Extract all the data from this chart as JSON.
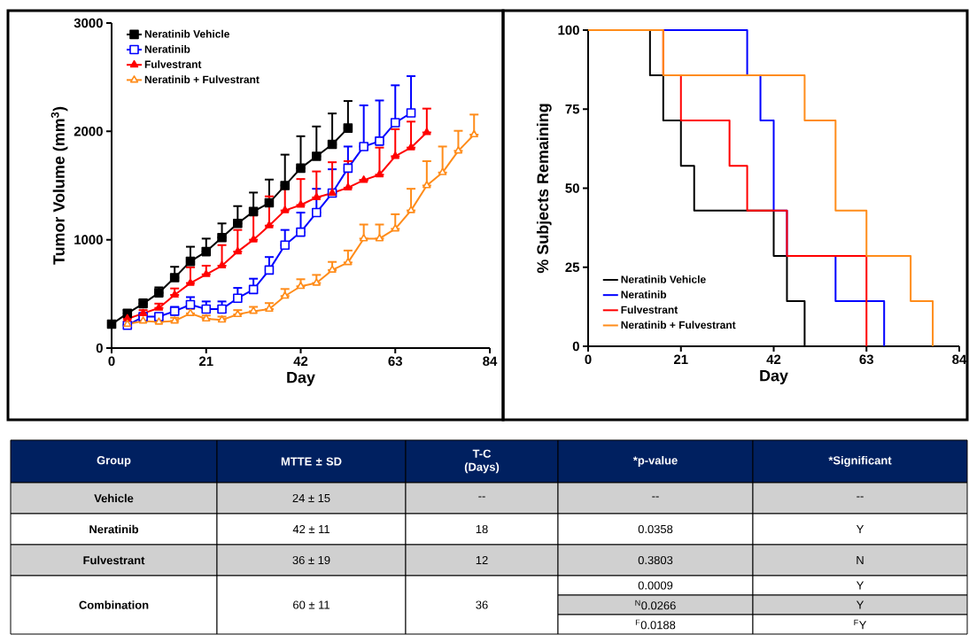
{
  "chart_data": [
    {
      "type": "line",
      "xlabel": "Day",
      "ylabel": "Tumor Volume (mm$^{3}$)",
      "xlim": [
        0,
        84
      ],
      "xticks": [
        0,
        21,
        42,
        63,
        84
      ],
      "ylim": [
        0,
        3000
      ],
      "yticks": [
        0,
        1000,
        2000,
        3000
      ],
      "legend": "top left",
      "series": [
        {
          "name": "Neratinib Vehicle",
          "color": "#000000",
          "marker": "square",
          "x": [
            0,
            3.5,
            7,
            10.5,
            14,
            17.5,
            21,
            24.5,
            28,
            31.5,
            35,
            38.5,
            42,
            45.5,
            49,
            52.5
          ],
          "values": [
            220,
            320,
            410,
            510,
            650,
            800,
            890,
            1020,
            1150,
            1260,
            1340,
            1500,
            1660,
            1770,
            1880,
            2030
          ],
          "errors": [
            null,
            [
              320,
              350
            ],
            [
              410,
              450
            ],
            [
              510,
              560
            ],
            [
              650,
              750
            ],
            [
              800,
              935
            ],
            [
              890,
              1010
            ],
            [
              1020,
              1150
            ],
            [
              1150,
              1310
            ],
            [
              1260,
              1435
            ],
            [
              1340,
              1555
            ],
            [
              1500,
              1785
            ],
            [
              1660,
              1955
            ],
            [
              1770,
              2045
            ],
            [
              1880,
              2165
            ],
            [
              2030,
              2280
            ]
          ]
        },
        {
          "name": "Neratinib",
          "color": "#0000ff",
          "marker": "square",
          "x": [
            3.5,
            7,
            10.5,
            14,
            17.5,
            21,
            24.5,
            28,
            31.5,
            35,
            38.5,
            42,
            45.5,
            49,
            52.5,
            56,
            59.5,
            63,
            66.5
          ],
          "values": [
            210,
            290,
            290,
            340,
            400,
            360,
            360,
            460,
            540,
            720,
            950,
            1070,
            1250,
            1430,
            1660,
            1860,
            1910,
            2080,
            2170
          ],
          "errors": [
            null,
            null,
            [
              290,
              320
            ],
            [
              340,
              380
            ],
            [
              400,
              470
            ],
            [
              360,
              430
            ],
            [
              360,
              430
            ],
            [
              460,
              555
            ],
            [
              540,
              640
            ],
            [
              720,
              840
            ],
            [
              950,
              1090
            ],
            [
              1070,
              1250
            ],
            [
              1250,
              1470
            ],
            [
              1430,
              1650
            ],
            [
              1660,
              1860
            ],
            [
              1860,
              2240
            ],
            [
              1910,
              2285
            ],
            [
              2080,
              2425
            ],
            [
              2170,
              2510
            ]
          ]
        },
        {
          "name": "Fulvestrant",
          "color": "#ff0000",
          "marker": "triangle",
          "x": [
            3.5,
            7,
            10.5,
            14,
            17.5,
            21,
            24.5,
            28,
            31.5,
            35,
            38.5,
            42,
            45.5,
            49,
            52.5,
            56,
            59.5,
            63,
            66.5,
            70
          ],
          "values": [
            270,
            320,
            370,
            490,
            600,
            680,
            760,
            890,
            1000,
            1130,
            1270,
            1320,
            1390,
            1430,
            1480,
            1550,
            1600,
            1770,
            1850,
            1990
          ],
          "errors": [
            [
              270,
              290
            ],
            [
              320,
              350
            ],
            [
              370,
              410
            ],
            [
              490,
              550
            ],
            [
              600,
              745
            ],
            [
              680,
              760
            ],
            [
              760,
              950
            ],
            [
              890,
              1090
            ],
            [
              1000,
              1225
            ],
            [
              1130,
              1400
            ],
            [
              1270,
              1470
            ],
            [
              1320,
              1560
            ],
            [
              1390,
              1630
            ],
            [
              1430,
              1715
            ],
            [
              1480,
              1725
            ],
            null,
            [
              1600,
              1850
            ],
            [
              1770,
              2020
            ],
            [
              1850,
              2090
            ],
            [
              1990,
              2210
            ]
          ]
        },
        {
          "name": "Neratinib + Fulvestrant",
          "color": "#ff8c1a",
          "marker": "triangle",
          "x": [
            3.5,
            7,
            10.5,
            14,
            17.5,
            21,
            24.5,
            28,
            31.5,
            35,
            38.5,
            42,
            45.5,
            49,
            52.5,
            56,
            59.5,
            63,
            66.5,
            70,
            73.5,
            77,
            80.5
          ],
          "values": [
            220,
            250,
            240,
            250,
            320,
            270,
            260,
            310,
            340,
            360,
            480,
            570,
            600,
            720,
            790,
            1010,
            1010,
            1100,
            1270,
            1500,
            1620,
            1820,
            1970
          ],
          "errors": [
            null,
            [
              250,
              270
            ],
            [
              240,
              260
            ],
            [
              250,
              280
            ],
            [
              320,
              360
            ],
            [
              270,
              300
            ],
            [
              260,
              290
            ],
            [
              310,
              350
            ],
            [
              340,
              380
            ],
            [
              360,
              415
            ],
            [
              480,
              545
            ],
            [
              570,
              635
            ],
            [
              600,
              675
            ],
            [
              720,
              795
            ],
            [
              790,
              900
            ],
            [
              1010,
              1140
            ],
            [
              1010,
              1140
            ],
            [
              1100,
              1235
            ],
            [
              1270,
              1470
            ],
            [
              1500,
              1725
            ],
            [
              1620,
              1860
            ],
            [
              1820,
              2005
            ],
            [
              1970,
              2155
            ]
          ]
        }
      ]
    },
    {
      "type": "step",
      "xlabel": "Day",
      "ylabel": "% Subjects Remaining",
      "xlim": [
        0,
        84
      ],
      "xticks": [
        0,
        21,
        42,
        63,
        84
      ],
      "ylim": [
        0,
        100
      ],
      "yticks": [
        0,
        25,
        50,
        75,
        100
      ],
      "legend": "bottom left",
      "series": [
        {
          "name": "Neratinib Vehicle",
          "color": "#000000",
          "x": [
            0,
            14,
            17,
            21,
            24,
            42,
            45,
            49
          ],
          "values": [
            100,
            85.7,
            71.4,
            57.1,
            42.9,
            28.6,
            14.3,
            0
          ]
        },
        {
          "name": "Neratinib",
          "color": "#0000ff",
          "x": [
            0,
            36,
            39,
            42,
            45,
            56,
            67
          ],
          "values": [
            100,
            85.7,
            71.4,
            42.9,
            28.6,
            14.3,
            0
          ]
        },
        {
          "name": "Fulvestrant",
          "color": "#ff0000",
          "x": [
            0,
            17,
            21,
            32,
            36,
            45,
            63
          ],
          "values": [
            100,
            85.7,
            71.4,
            57.1,
            42.9,
            28.6,
            0
          ]
        },
        {
          "name": "Neratinib + Fulvestrant",
          "color": "#ff8c1a",
          "x": [
            0,
            17,
            49,
            56,
            63,
            73,
            78
          ],
          "values": [
            100,
            85.7,
            71.4,
            42.9,
            28.6,
            14.3,
            0
          ]
        }
      ]
    },
    {
      "type": "other",
      "categories": [
        "Group",
        "MTTE ± SD",
        "T-C (Days)",
        "*p-value",
        "*Significant"
      ],
      "cell_labels": [
        [
          "Vehicle",
          "24 ± 15",
          "--",
          "--",
          "--"
        ],
        [
          "Neratinib",
          "42 ± 11",
          "18",
          "0.0358",
          "Y"
        ],
        [
          "Fulvestrant",
          "36 ± 19",
          "12",
          "0.3803",
          "N"
        ],
        [
          "Combination",
          "60 ± 11",
          "36",
          "0.0009",
          "Y"
        ],
        [
          null,
          null,
          null,
          "$^{N}$0.0266",
          "Y"
        ],
        [
          null,
          null,
          null,
          "$^{F}$0.0188",
          "$^{F}$Y"
        ]
      ]
    }
  ]
}
